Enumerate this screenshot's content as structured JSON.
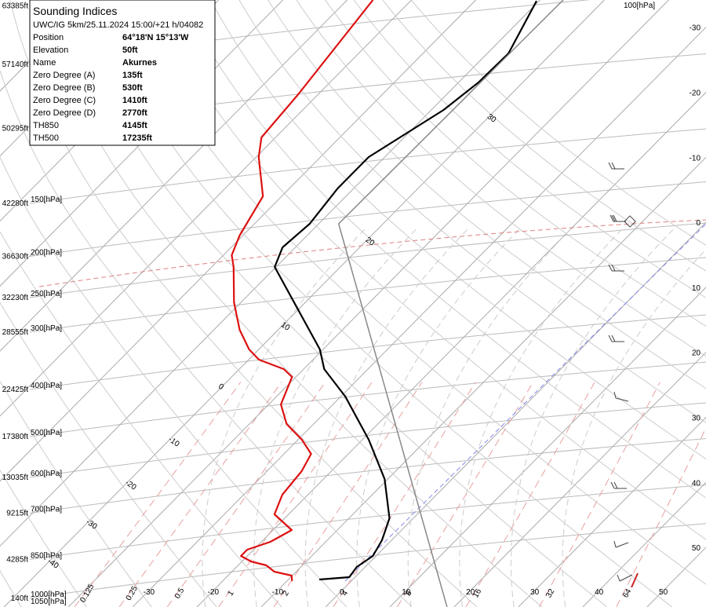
{
  "info_box": {
    "title": "Sounding Indices",
    "subtitle": "UWC/IG 5km/25.11.2024 15:00/+21 h/04082",
    "rows": [
      [
        "Position",
        "64°18'N 15°13'W"
      ],
      [
        "Elevation",
        "50ft"
      ],
      [
        "Name",
        "Akurnes"
      ],
      [
        "Zero Degree (A)",
        "135ft"
      ],
      [
        "Zero Degree (B)",
        "530ft"
      ],
      [
        "Zero Degree (C)",
        "1410ft"
      ],
      [
        "Zero Degree (D)",
        "2770ft"
      ],
      [
        "TH850",
        "4145ft"
      ],
      [
        "TH500",
        "17235ft"
      ]
    ]
  },
  "chart_data": {
    "type": "skewt",
    "ylim": [
      -800,
      64000
    ],
    "xlim": [
      -52.2,
      57.6
    ],
    "yticks": [
      {
        "value": 140,
        "label": "140ft"
      },
      {
        "value": 4285,
        "label": "4285ft"
      },
      {
        "value": 9215,
        "label": "9215ft"
      },
      {
        "value": 13035,
        "label": "13035ft"
      },
      {
        "value": 17380,
        "label": "17380ft"
      },
      {
        "value": 22425,
        "label": "22425ft"
      },
      {
        "value": 28555,
        "label": "28555ft"
      },
      {
        "value": 32230,
        "label": "32230ft"
      },
      {
        "value": 36630,
        "label": "36630ft"
      },
      {
        "value": 42280,
        "label": "42280ft"
      },
      {
        "value": 50295,
        "label": "50295ft"
      },
      {
        "value": 57140,
        "label": "57140ft"
      },
      {
        "value": 63385,
        "label": "63385ft"
      }
    ],
    "pressure_labels": [
      "1000[hPa]",
      "850[hPa]",
      "700[hPa]",
      "600[hPa]",
      "500[hPa]",
      "400[hPa]",
      "300[hPa]",
      "250[hPa]",
      "200[hPa]",
      "150[hPa]",
      null,
      null,
      null
    ],
    "bottom_pressure_label": "1050[hPa]",
    "top_pressure_label": "100[hPa]",
    "xticks": [
      -30,
      -20,
      -10,
      0,
      10,
      20,
      30,
      40,
      50
    ],
    "right_isotherm_labels": [
      -30,
      -20,
      -10,
      0,
      10,
      20,
      30,
      40,
      50
    ],
    "adiabat_labels": [
      -40,
      -30,
      -20,
      -10,
      0,
      10,
      20,
      30
    ],
    "mixing_ratios": [
      0.125,
      0.25,
      0.5,
      1,
      2,
      4,
      8,
      16,
      32,
      64
    ],
    "series": [
      {
        "color": "#000000",
        "altitude": [
          2134,
          2386,
          3475,
          4649,
          6326,
          8673,
          12864,
          17056,
          21666,
          24600,
          26696,
          35499,
          37594,
          40109,
          43881,
          47235,
          52265,
          55199,
          58301,
          63901
        ],
        "temperature": [
          -5.2,
          -0.9,
          -1.3,
          -0.5,
          -1.5,
          -3.7,
          -10.5,
          -19.0,
          -29.3,
          -36.8,
          -40.5,
          -60.2,
          -62.0,
          -61.4,
          -62.5,
          -62.5,
          -58.1,
          -56.9,
          -56.7,
          -60.4
        ]
      },
      {
        "color": "#dd1111",
        "altitude": [
          1966,
          2553,
          2972,
          3643,
          4062,
          4649,
          5320,
          6158,
          7415,
          9092,
          11188,
          13703,
          15547,
          17056,
          18733,
          20829,
          23762,
          24600,
          25606,
          26696,
          28792,
          31726,
          35499,
          36756,
          38852,
          43044,
          47235,
          49331,
          53941,
          64000
        ],
        "temperature": [
          -9.2,
          -10.1,
          -13.4,
          -15.6,
          -18.6,
          -21.0,
          -21.0,
          -18.6,
          -17.1,
          -22.2,
          -24.0,
          -24.6,
          -25.8,
          -29.4,
          -34.2,
          -38.1,
          -40.6,
          -43.1,
          -48.4,
          -51.5,
          -56.0,
          -61.1,
          -66.6,
          -68.7,
          -70.5,
          -72.9,
          -79.6,
          -82.2,
          -83.1,
          -86.0
        ]
      },
      {
        "color": "#888888",
        "altitude": [
          -800,
          40109,
          64000
        ],
        "temperature": [
          18.9,
          -56.9,
          -56.4
        ]
      }
    ]
  }
}
